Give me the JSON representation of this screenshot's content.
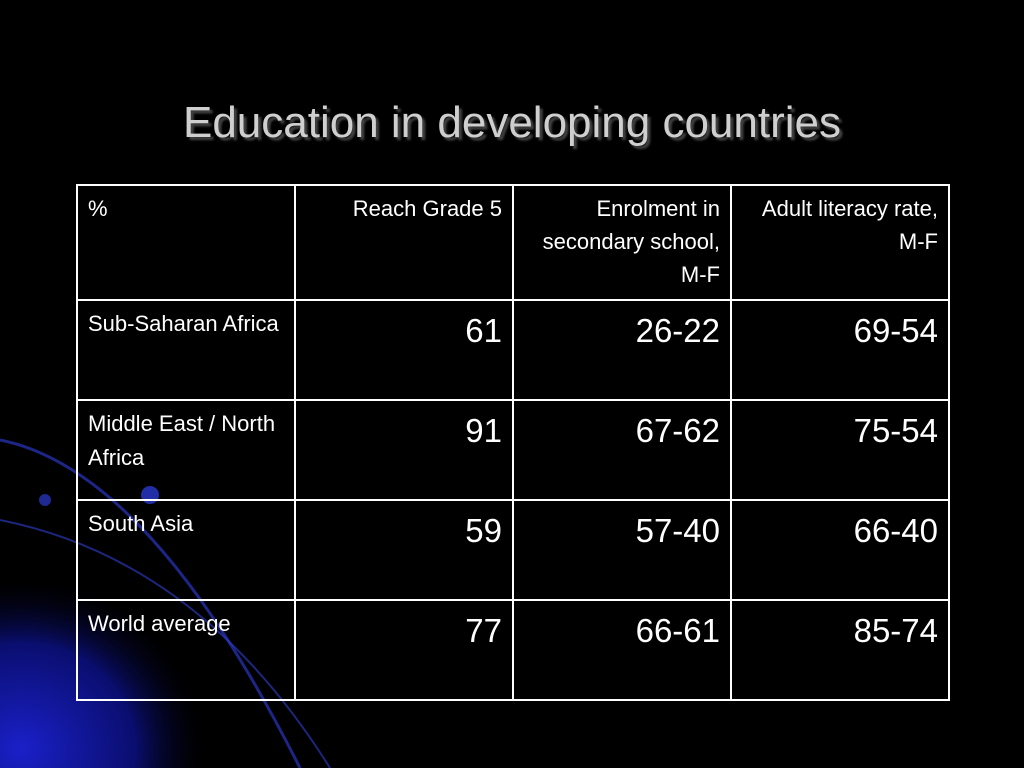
{
  "title": "Education in developing countries",
  "table": {
    "header": [
      "%",
      "Reach Grade 5",
      "Enrolment in secondary school, M-F",
      "Adult literacy rate, M-F"
    ],
    "rows": [
      [
        "Sub-Saharan Africa",
        "61",
        "26-22",
        "69-54"
      ],
      [
        "Middle East / North Africa",
        "91",
        "67-62",
        "75-54"
      ],
      [
        "South Asia",
        "59",
        "57-40",
        "66-40"
      ],
      [
        "World average",
        "77",
        "66-61",
        "85-74"
      ]
    ]
  }
}
